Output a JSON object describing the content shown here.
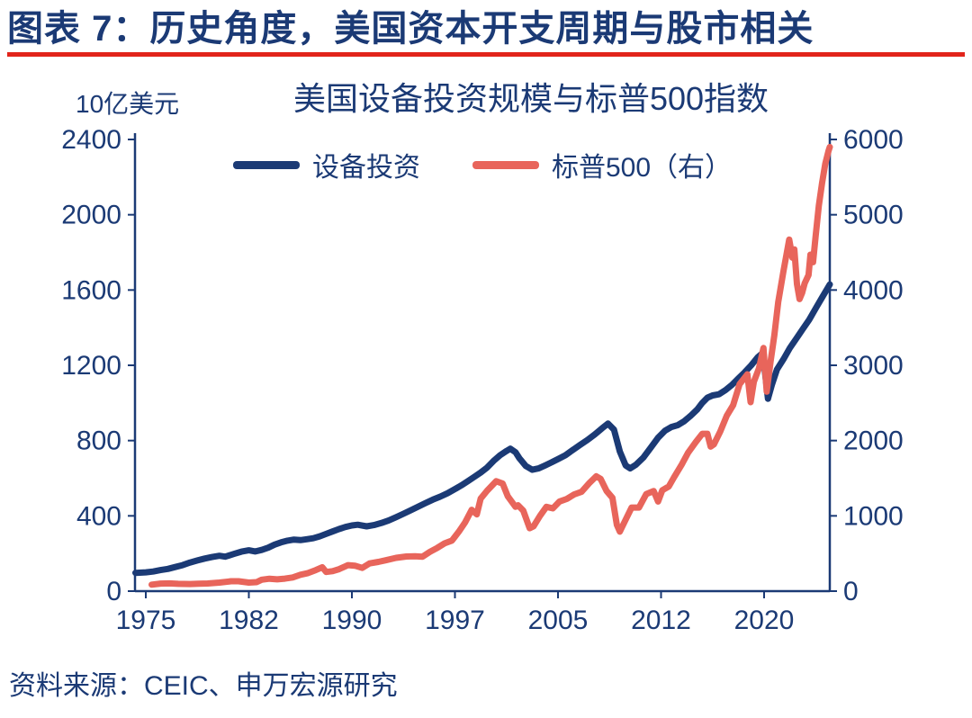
{
  "figure": {
    "title": "图表 7：历史角度，美国资本开支周期与股市相关",
    "source": "资料来源：CEIC、申万宏源研究"
  },
  "chart_data": {
    "type": "line",
    "title": "美国设备投资规模与标普500指数",
    "grid": false,
    "legend_position": "top-center",
    "colors": {
      "navy": "#1b3a75",
      "rule_red": "#e2241b",
      "series_blue": "#1b3a75",
      "series_red": "#e8655b"
    },
    "left_axis": {
      "label": "10亿美元",
      "min": 0,
      "max": 2400,
      "ticks": [
        0,
        400,
        800,
        1200,
        1600,
        2000,
        2400
      ]
    },
    "right_axis": {
      "min": 0,
      "max": 6000,
      "ticks": [
        0,
        1000,
        2000,
        3000,
        4000,
        5000,
        6000
      ]
    },
    "x_axis": {
      "ticks": [
        1975,
        1982,
        1990,
        1997,
        2005,
        2012,
        2020
      ],
      "range": [
        1974.3,
        2025.3
      ]
    },
    "series": [
      {
        "name": "设备投资",
        "axis": "left",
        "color": "#1b3a75",
        "points": [
          [
            1974.3,
            97
          ],
          [
            1975,
            100
          ],
          [
            1975.5,
            104
          ],
          [
            1976,
            112
          ],
          [
            1976.5,
            118
          ],
          [
            1977,
            128
          ],
          [
            1977.5,
            138
          ],
          [
            1978,
            152
          ],
          [
            1978.5,
            163
          ],
          [
            1979,
            173
          ],
          [
            1979.5,
            181
          ],
          [
            1980,
            188
          ],
          [
            1980.4,
            183
          ],
          [
            1981,
            198
          ],
          [
            1981.5,
            210
          ],
          [
            1982,
            217
          ],
          [
            1982.5,
            211
          ],
          [
            1983,
            219
          ],
          [
            1983.5,
            231
          ],
          [
            1984,
            247
          ],
          [
            1984.5,
            259
          ],
          [
            1985,
            268
          ],
          [
            1985.5,
            274
          ],
          [
            1986,
            271
          ],
          [
            1986.5,
            276
          ],
          [
            1987,
            281
          ],
          [
            1987.5,
            291
          ],
          [
            1988,
            304
          ],
          [
            1988.5,
            317
          ],
          [
            1989,
            330
          ],
          [
            1989.5,
            341
          ],
          [
            1990,
            349
          ],
          [
            1990.4,
            353
          ],
          [
            1991,
            344
          ],
          [
            1991.5,
            351
          ],
          [
            1992,
            362
          ],
          [
            1992.5,
            376
          ],
          [
            1993,
            393
          ],
          [
            1993.5,
            411
          ],
          [
            1994,
            430
          ],
          [
            1994.5,
            449
          ],
          [
            1995,
            468
          ],
          [
            1995.5,
            486
          ],
          [
            1996,
            502
          ],
          [
            1996.5,
            520
          ],
          [
            1997,
            542
          ],
          [
            1997.5,
            562
          ],
          [
            1998,
            584
          ],
          [
            1998.5,
            607
          ],
          [
            1999,
            630
          ],
          [
            1999.5,
            657
          ],
          [
            2000,
            692
          ],
          [
            2000.5,
            722
          ],
          [
            2001,
            745
          ],
          [
            2001.3,
            757
          ],
          [
            2001.7,
            738
          ],
          [
            2002,
            706
          ],
          [
            2002.5,
            665
          ],
          [
            2003,
            645
          ],
          [
            2003.5,
            652
          ],
          [
            2004,
            668
          ],
          [
            2004.5,
            684
          ],
          [
            2005,
            702
          ],
          [
            2005.5,
            722
          ],
          [
            2006,
            750
          ],
          [
            2006.5,
            777
          ],
          [
            2007,
            803
          ],
          [
            2007.5,
            833
          ],
          [
            2008,
            866
          ],
          [
            2008.4,
            890
          ],
          [
            2008.8,
            858
          ],
          [
            2009.2,
            742
          ],
          [
            2009.6,
            668
          ],
          [
            2009.9,
            652
          ],
          [
            2010.3,
            672
          ],
          [
            2010.8,
            710
          ],
          [
            2011.3,
            762
          ],
          [
            2011.8,
            815
          ],
          [
            2012.3,
            852
          ],
          [
            2012.8,
            872
          ],
          [
            2013.3,
            882
          ],
          [
            2013.8,
            903
          ],
          [
            2014.3,
            932
          ],
          [
            2014.8,
            965
          ],
          [
            2015.2,
            1000
          ],
          [
            2015.6,
            1028
          ],
          [
            2016,
            1040
          ],
          [
            2016.5,
            1046
          ],
          [
            2017,
            1068
          ],
          [
            2017.5,
            1096
          ],
          [
            2018,
            1130
          ],
          [
            2018.5,
            1163
          ],
          [
            2019,
            1200
          ],
          [
            2019.5,
            1242
          ],
          [
            2019.9,
            1266
          ],
          [
            2020.3,
            1022
          ],
          [
            2020.6,
            1096
          ],
          [
            2021,
            1178
          ],
          [
            2021.5,
            1232
          ],
          [
            2022,
            1292
          ],
          [
            2022.5,
            1342
          ],
          [
            2023,
            1392
          ],
          [
            2023.5,
            1442
          ],
          [
            2024,
            1502
          ],
          [
            2024.5,
            1560
          ],
          [
            2025.3,
            1630
          ]
        ]
      },
      {
        "name": "标普500（右）",
        "axis": "right",
        "color": "#e8655b",
        "points": [
          [
            1975.4,
            86
          ],
          [
            1976,
            100
          ],
          [
            1976.6,
            103
          ],
          [
            1977.2,
            97
          ],
          [
            1978,
            94
          ],
          [
            1978.6,
            99
          ],
          [
            1979.2,
            102
          ],
          [
            1980,
            114
          ],
          [
            1980.8,
            132
          ],
          [
            1981.3,
            131
          ],
          [
            1982,
            114
          ],
          [
            1982.6,
            120
          ],
          [
            1983,
            152
          ],
          [
            1983.6,
            165
          ],
          [
            1984.2,
            157
          ],
          [
            1984.8,
            166
          ],
          [
            1985.4,
            182
          ],
          [
            1986,
            218
          ],
          [
            1986.6,
            240
          ],
          [
            1987.2,
            280
          ],
          [
            1987.7,
            318
          ],
          [
            1988,
            255
          ],
          [
            1988.5,
            265
          ],
          [
            1989,
            292
          ],
          [
            1989.7,
            345
          ],
          [
            1990.2,
            338
          ],
          [
            1990.7,
            308
          ],
          [
            1991.2,
            368
          ],
          [
            1991.8,
            388
          ],
          [
            1992.3,
            410
          ],
          [
            1993,
            442
          ],
          [
            1993.7,
            460
          ],
          [
            1994.3,
            462
          ],
          [
            1994.8,
            458
          ],
          [
            1995.3,
            522
          ],
          [
            1995.8,
            575
          ],
          [
            1996.3,
            635
          ],
          [
            1996.8,
            672
          ],
          [
            1997.3,
            790
          ],
          [
            1997.8,
            915
          ],
          [
            1998.3,
            1080
          ],
          [
            1998.7,
            1020
          ],
          [
            1999,
            1230
          ],
          [
            1999.5,
            1335
          ],
          [
            2000.2,
            1460
          ],
          [
            2000.7,
            1430
          ],
          [
            2001.1,
            1260
          ],
          [
            2001.7,
            1120
          ],
          [
            2001.9,
            1140
          ],
          [
            2002.3,
            1070
          ],
          [
            2002.8,
            835
          ],
          [
            2003.1,
            860
          ],
          [
            2003.6,
            1000
          ],
          [
            2004.1,
            1120
          ],
          [
            2004.6,
            1100
          ],
          [
            2005.1,
            1190
          ],
          [
            2005.6,
            1225
          ],
          [
            2006.1,
            1285
          ],
          [
            2006.6,
            1320
          ],
          [
            2007.1,
            1430
          ],
          [
            2007.6,
            1525
          ],
          [
            2007.9,
            1490
          ],
          [
            2008.3,
            1330
          ],
          [
            2008.7,
            1240
          ],
          [
            2009,
            880
          ],
          [
            2009.2,
            790
          ],
          [
            2009.6,
            950
          ],
          [
            2010,
            1110
          ],
          [
            2010.5,
            1110
          ],
          [
            2011,
            1290
          ],
          [
            2011.5,
            1330
          ],
          [
            2011.8,
            1190
          ],
          [
            2012.1,
            1340
          ],
          [
            2012.6,
            1390
          ],
          [
            2013,
            1510
          ],
          [
            2013.6,
            1680
          ],
          [
            2014.1,
            1840
          ],
          [
            2014.7,
            1980
          ],
          [
            2015.2,
            2090
          ],
          [
            2015.6,
            2090
          ],
          [
            2015.85,
            1920
          ],
          [
            2016.1,
            1950
          ],
          [
            2016.6,
            2120
          ],
          [
            2017.1,
            2330
          ],
          [
            2017.6,
            2470
          ],
          [
            2018.1,
            2750
          ],
          [
            2018.7,
            2880
          ],
          [
            2018.95,
            2510
          ],
          [
            2019.2,
            2780
          ],
          [
            2019.6,
            2960
          ],
          [
            2019.95,
            3230
          ],
          [
            2020.2,
            2650
          ],
          [
            2020.5,
            3050
          ],
          [
            2020.8,
            3400
          ],
          [
            2021.1,
            3840
          ],
          [
            2021.5,
            4250
          ],
          [
            2021.95,
            4670
          ],
          [
            2022.2,
            4430
          ],
          [
            2022.35,
            4540
          ],
          [
            2022.55,
            4080
          ],
          [
            2022.75,
            3880
          ],
          [
            2022.95,
            3960
          ],
          [
            2023.15,
            4090
          ],
          [
            2023.45,
            4200
          ],
          [
            2023.6,
            4470
          ],
          [
            2023.8,
            4370
          ],
          [
            2024,
            4720
          ],
          [
            2024.25,
            5120
          ],
          [
            2024.5,
            5420
          ],
          [
            2024.75,
            5680
          ],
          [
            2025,
            5850
          ],
          [
            2025.2,
            5900
          ]
        ]
      }
    ]
  }
}
